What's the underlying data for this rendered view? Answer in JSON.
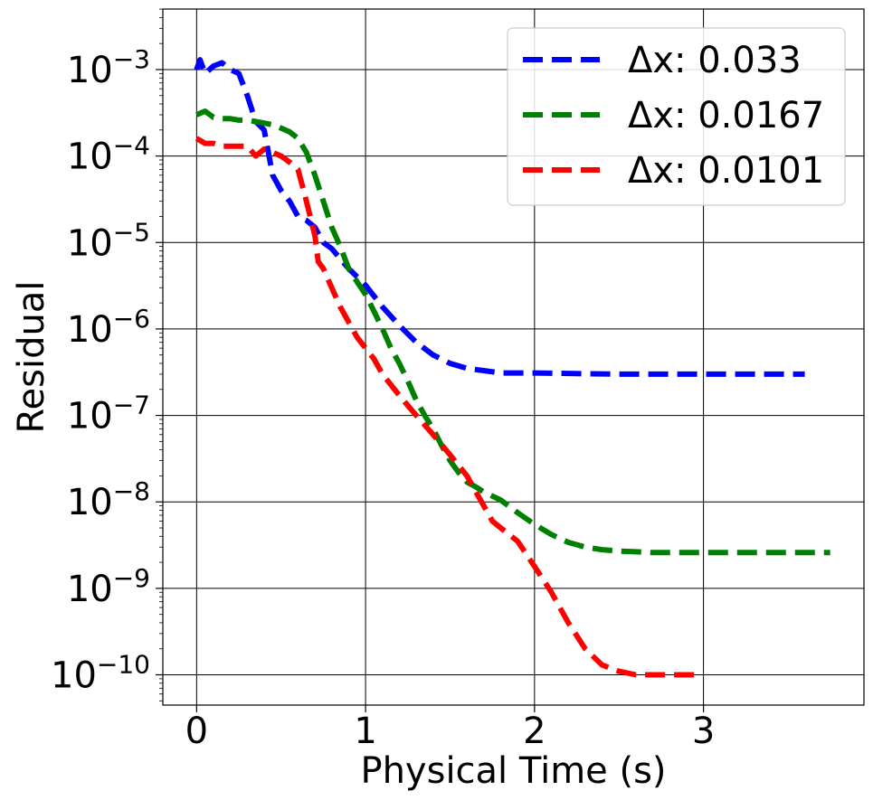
{
  "chart_data": {
    "type": "line",
    "xlabel": "Physical Time (s)",
    "ylabel": "Residual",
    "xlim": [
      -0.2,
      3.95
    ],
    "ylim_log10": [
      -10.35,
      1.7
    ],
    "y_scale": "log",
    "grid": true,
    "legend_position": "top-right",
    "x_ticks": [
      0,
      1,
      2,
      3
    ],
    "x_tick_labels": [
      "0",
      "1",
      "2",
      "3"
    ],
    "y_ticks_exp": [
      -3,
      -4,
      -5,
      -6,
      -7,
      -8,
      -9,
      -10
    ],
    "y_tick_base": "10",
    "y_tick_exponents": [
      "−3",
      "−4",
      "−5",
      "−6",
      "−7",
      "−8",
      "−9",
      "−10"
    ],
    "series": [
      {
        "name": "Δx: 0.033",
        "color": "#0000ff",
        "points": [
          [
            0.0,
            0.001
          ],
          [
            0.02,
            0.0013
          ],
          [
            0.05,
            0.0009
          ],
          [
            0.1,
            0.0011
          ],
          [
            0.15,
            0.0012
          ],
          [
            0.2,
            0.001
          ],
          [
            0.25,
            0.0009
          ],
          [
            0.3,
            0.0005
          ],
          [
            0.35,
            0.00025
          ],
          [
            0.4,
            0.0002
          ],
          [
            0.45,
            6e-05
          ],
          [
            0.5,
            4e-05
          ],
          [
            0.55,
            3e-05
          ],
          [
            0.6,
            2e-05
          ],
          [
            0.65,
            1.8e-05
          ],
          [
            0.7,
            1.5e-05
          ],
          [
            0.75,
            1e-05
          ],
          [
            0.8,
            8.5e-06
          ],
          [
            0.85,
            6.5e-06
          ],
          [
            0.9,
            5e-06
          ],
          [
            0.95,
            4e-06
          ],
          [
            1.0,
            3.2e-06
          ],
          [
            1.1,
            1.8e-06
          ],
          [
            1.2,
            1.1e-06
          ],
          [
            1.3,
            7e-07
          ],
          [
            1.4,
            5e-07
          ],
          [
            1.5,
            4e-07
          ],
          [
            1.6,
            3.5e-07
          ],
          [
            1.7,
            3.3e-07
          ],
          [
            1.8,
            3.1e-07
          ],
          [
            2.0,
            3.1e-07
          ],
          [
            2.5,
            3e-07
          ],
          [
            3.0,
            3e-07
          ],
          [
            3.6,
            3e-07
          ]
        ]
      },
      {
        "name": "Δx: 0.0167",
        "color": "#008000",
        "points": [
          [
            0.0,
            0.0003
          ],
          [
            0.05,
            0.00033
          ],
          [
            0.1,
            0.00028
          ],
          [
            0.15,
            0.00027
          ],
          [
            0.2,
            0.00027
          ],
          [
            0.25,
            0.00026
          ],
          [
            0.3,
            0.00026
          ],
          [
            0.35,
            0.00025
          ],
          [
            0.4,
            0.00024
          ],
          [
            0.45,
            0.00023
          ],
          [
            0.5,
            0.00021
          ],
          [
            0.55,
            0.00019
          ],
          [
            0.6,
            0.00016
          ],
          [
            0.65,
            0.00011
          ],
          [
            0.7,
            6e-05
          ],
          [
            0.75,
            3e-05
          ],
          [
            0.8,
            1.5e-05
          ],
          [
            0.85,
            9e-06
          ],
          [
            0.9,
            5e-06
          ],
          [
            0.95,
            3.5e-06
          ],
          [
            1.0,
            2.5e-06
          ],
          [
            1.05,
            1.6e-06
          ],
          [
            1.1,
            1e-06
          ],
          [
            1.15,
            6e-07
          ],
          [
            1.2,
            4e-07
          ],
          [
            1.25,
            2.5e-07
          ],
          [
            1.3,
            1.5e-07
          ],
          [
            1.35,
            1e-07
          ],
          [
            1.4,
            7e-08
          ],
          [
            1.45,
            4.5e-08
          ],
          [
            1.5,
            3e-08
          ],
          [
            1.55,
            2.2e-08
          ],
          [
            1.6,
            1.7e-08
          ],
          [
            1.65,
            1.5e-08
          ],
          [
            1.7,
            1.3e-08
          ],
          [
            1.8,
            1.05e-08
          ],
          [
            1.9,
            7.5e-09
          ],
          [
            2.0,
            5.5e-09
          ],
          [
            2.1,
            4.2e-09
          ],
          [
            2.2,
            3.4e-09
          ],
          [
            2.3,
            3e-09
          ],
          [
            2.4,
            2.8e-09
          ],
          [
            2.5,
            2.7e-09
          ],
          [
            2.7,
            2.6e-09
          ],
          [
            3.0,
            2.6e-09
          ],
          [
            3.75,
            2.6e-09
          ]
        ]
      },
      {
        "name": "Δx: 0.0101",
        "color": "#ff0000",
        "points": [
          [
            0.0,
            0.00016
          ],
          [
            0.05,
            0.00014
          ],
          [
            0.1,
            0.00014
          ],
          [
            0.15,
            0.00013
          ],
          [
            0.2,
            0.00013
          ],
          [
            0.25,
            0.00013
          ],
          [
            0.3,
            0.00013
          ],
          [
            0.35,
            0.0001
          ],
          [
            0.4,
            0.00012
          ],
          [
            0.45,
            0.00011
          ],
          [
            0.5,
            0.0001
          ],
          [
            0.55,
            8.5e-05
          ],
          [
            0.6,
            7e-05
          ],
          [
            0.65,
            3e-05
          ],
          [
            0.7,
            1.2e-05
          ],
          [
            0.72,
            6e-06
          ],
          [
            0.75,
            5e-06
          ],
          [
            0.8,
            3e-06
          ],
          [
            0.85,
            1.8e-06
          ],
          [
            0.9,
            1.2e-06
          ],
          [
            0.95,
            8e-07
          ],
          [
            1.0,
            6e-07
          ],
          [
            1.05,
            4.5e-07
          ],
          [
            1.1,
            3e-07
          ],
          [
            1.2,
            1.7e-07
          ],
          [
            1.3,
            1e-07
          ],
          [
            1.4,
            6e-08
          ],
          [
            1.5,
            3.5e-08
          ],
          [
            1.6,
            2e-08
          ],
          [
            1.7,
            9e-09
          ],
          [
            1.75,
            6e-09
          ],
          [
            1.8,
            5e-09
          ],
          [
            1.9,
            3.5e-09
          ],
          [
            2.0,
            1.8e-09
          ],
          [
            2.1,
            9e-10
          ],
          [
            2.2,
            4e-10
          ],
          [
            2.3,
            2e-10
          ],
          [
            2.4,
            1.3e-10
          ],
          [
            2.5,
            1.1e-10
          ],
          [
            2.6,
            1e-10
          ],
          [
            2.8,
            1e-10
          ],
          [
            3.0,
            1e-10
          ]
        ]
      }
    ]
  }
}
